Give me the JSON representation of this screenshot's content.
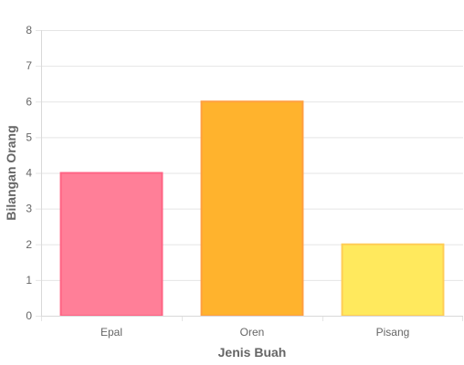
{
  "chart_data": {
    "type": "bar",
    "categories": [
      "Epal",
      "Oren",
      "Pisang"
    ],
    "values": [
      4,
      6,
      2
    ],
    "xlabel": "Jenis Buah",
    "ylabel": "Bilangan Orang",
    "ylim": [
      0,
      8
    ],
    "yticks": [
      0,
      1,
      2,
      3,
      4,
      5,
      6,
      7,
      8
    ],
    "grid": true,
    "legend": "none",
    "colors": {
      "fills": [
        "#ff7f98",
        "#ffb32d",
        "#ffe95d"
      ],
      "borders": [
        "#ff6384",
        "#ff9f40",
        "#ffcd56"
      ],
      "grid": "#e5e5e5",
      "text": "#666666"
    }
  }
}
